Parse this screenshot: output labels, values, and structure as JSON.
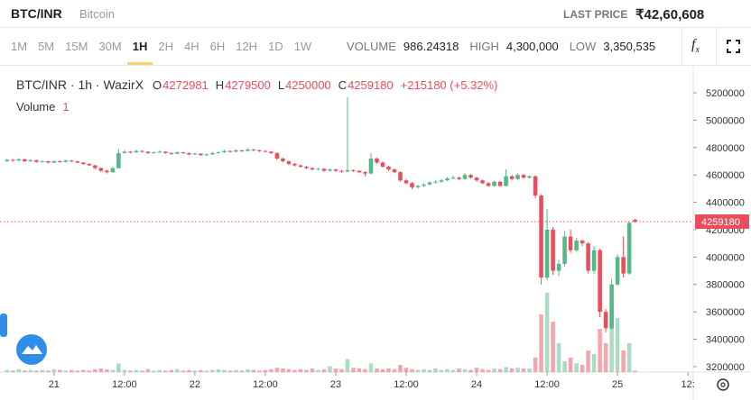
{
  "header": {
    "pair": "BTC/INR",
    "name": "Bitcoin",
    "last_price_label": "LAST PRICE",
    "last_price": "₹42,60,608"
  },
  "toolbar": {
    "intervals": [
      "1M",
      "5M",
      "15M",
      "30M",
      "1H",
      "2H",
      "4H",
      "6H",
      "12H",
      "1D",
      "1W"
    ],
    "active": "1H",
    "stats": [
      {
        "label": "VOLUME",
        "value": "986.24318"
      },
      {
        "label": "HIGH",
        "value": "4,300,000"
      },
      {
        "label": "LOW",
        "value": "3,350,535"
      }
    ]
  },
  "chart_data": {
    "type": "candlestick",
    "title": "BTC/INR · 1h · WazirX",
    "ohlc_labels": [
      "O",
      "H",
      "L",
      "C"
    ],
    "change": "+215180 (+5.32%)",
    "volume_label": "Volume",
    "volume_param": "1",
    "up_color": "#53b987",
    "down_color": "#eb4d5c",
    "ylim": [
      3160000,
      5404000
    ],
    "yticks": [
      3200000,
      3400000,
      3600000,
      3800000,
      4000000,
      4200000,
      4400000,
      4600000,
      4800000,
      5000000,
      5200000
    ],
    "xlim": [
      -1.2,
      116.9
    ],
    "xticks": [
      {
        "value": 8,
        "label": "21"
      },
      {
        "value": 20,
        "label": "12:00"
      },
      {
        "value": 32,
        "label": "22"
      },
      {
        "value": 44,
        "label": "12:00"
      },
      {
        "value": 56,
        "label": "23"
      },
      {
        "value": 68,
        "label": "12:00"
      },
      {
        "value": 80,
        "label": "24"
      },
      {
        "value": 92,
        "label": "12:00"
      },
      {
        "value": 104,
        "label": "25"
      },
      {
        "value": 116,
        "label": "12:"
      }
    ],
    "candles": [
      [
        4700000,
        4720000,
        4695000,
        4710000
      ],
      [
        4710000,
        4718000,
        4698000,
        4705000
      ],
      [
        4705000,
        4722000,
        4700000,
        4715000
      ],
      [
        4715000,
        4718000,
        4695000,
        4700000
      ],
      [
        4700000,
        4715000,
        4696000,
        4708000
      ],
      [
        4708000,
        4710000,
        4690000,
        4695000
      ],
      [
        4695000,
        4706000,
        4690000,
        4700000
      ],
      [
        4700000,
        4704000,
        4684000,
        4690000
      ],
      [
        4690000,
        4708000,
        4686000,
        4700000
      ],
      [
        4700000,
        4705000,
        4690000,
        4695000
      ],
      [
        4695000,
        4712000,
        4690000,
        4705000
      ],
      [
        4705000,
        4710000,
        4695000,
        4700000
      ],
      [
        4700000,
        4703000,
        4685000,
        4690000
      ],
      [
        4690000,
        4695000,
        4675000,
        4680000
      ],
      [
        4680000,
        4686000,
        4665000,
        4670000
      ],
      [
        4670000,
        4675000,
        4640000,
        4650000
      ],
      [
        4650000,
        4655000,
        4620000,
        4630000
      ],
      [
        4630000,
        4640000,
        4610000,
        4620000
      ],
      [
        4620000,
        4660000,
        4615000,
        4650000
      ],
      [
        4650000,
        4790000,
        4645000,
        4760000
      ],
      [
        4760000,
        4780000,
        4755000,
        4770000
      ],
      [
        4770000,
        4775000,
        4758000,
        4765000
      ],
      [
        4765000,
        4785000,
        4760000,
        4775000
      ],
      [
        4775000,
        4780000,
        4764000,
        4770000
      ],
      [
        4770000,
        4773000,
        4752000,
        4760000
      ],
      [
        4760000,
        4772000,
        4756000,
        4765000
      ],
      [
        4765000,
        4778000,
        4760000,
        4770000
      ],
      [
        4770000,
        4774000,
        4754000,
        4760000
      ],
      [
        4760000,
        4764000,
        4748000,
        4755000
      ],
      [
        4755000,
        4772000,
        4750000,
        4765000
      ],
      [
        4765000,
        4770000,
        4754000,
        4760000
      ],
      [
        4760000,
        4764000,
        4742000,
        4750000
      ],
      [
        4750000,
        4762000,
        4746000,
        4755000
      ],
      [
        4755000,
        4758000,
        4738000,
        4745000
      ],
      [
        4745000,
        4756000,
        4740000,
        4750000
      ],
      [
        4750000,
        4768000,
        4746000,
        4760000
      ],
      [
        4760000,
        4772000,
        4755000,
        4765000
      ],
      [
        4765000,
        4784000,
        4760000,
        4775000
      ],
      [
        4775000,
        4780000,
        4764000,
        4770000
      ],
      [
        4770000,
        4790000,
        4766000,
        4780000
      ],
      [
        4780000,
        4784000,
        4768000,
        4775000
      ],
      [
        4775000,
        4795000,
        4770000,
        4785000
      ],
      [
        4785000,
        4790000,
        4774000,
        4780000
      ],
      [
        4780000,
        4784000,
        4768000,
        4775000
      ],
      [
        4775000,
        4780000,
        4764000,
        4770000
      ],
      [
        4770000,
        4774000,
        4752000,
        4760000
      ],
      [
        4760000,
        4765000,
        4710000,
        4720000
      ],
      [
        4720000,
        4728000,
        4692000,
        4700000
      ],
      [
        4700000,
        4706000,
        4672000,
        4680000
      ],
      [
        4680000,
        4688000,
        4662000,
        4670000
      ],
      [
        4670000,
        4676000,
        4652000,
        4660000
      ],
      [
        4660000,
        4668000,
        4642000,
        4650000
      ],
      [
        4650000,
        4656000,
        4632000,
        4640000
      ],
      [
        4640000,
        4652000,
        4635000,
        4645000
      ],
      [
        4645000,
        4650000,
        4622000,
        4630000
      ],
      [
        4630000,
        4648000,
        4625000,
        4640000
      ],
      [
        4640000,
        4645000,
        4622000,
        4630000
      ],
      [
        4630000,
        4636000,
        4615000,
        4625000
      ],
      [
        4625000,
        5170000,
        4620000,
        4635000
      ],
      [
        4635000,
        4640000,
        4622000,
        4630000
      ],
      [
        4630000,
        4635000,
        4612000,
        4620000
      ],
      [
        4620000,
        4628000,
        4590000,
        4610000
      ],
      [
        4610000,
        4760000,
        4605000,
        4720000
      ],
      [
        4720000,
        4728000,
        4680000,
        4690000
      ],
      [
        4690000,
        4698000,
        4652000,
        4660000
      ],
      [
        4660000,
        4668000,
        4630000,
        4640000
      ],
      [
        4640000,
        4648000,
        4612000,
        4620000
      ],
      [
        4620000,
        4628000,
        4550000,
        4560000
      ],
      [
        4560000,
        4570000,
        4530000,
        4540000
      ],
      [
        4540000,
        4548000,
        4495000,
        4510000
      ],
      [
        4510000,
        4528000,
        4500000,
        4520000
      ],
      [
        4520000,
        4540000,
        4512000,
        4530000
      ],
      [
        4530000,
        4555000,
        4525000,
        4545000
      ],
      [
        4545000,
        4560000,
        4538000,
        4550000
      ],
      [
        4550000,
        4570000,
        4544000,
        4560000
      ],
      [
        4560000,
        4585000,
        4555000,
        4575000
      ],
      [
        4575000,
        4595000,
        4570000,
        4580000
      ],
      [
        4580000,
        4588000,
        4562000,
        4570000
      ],
      [
        4570000,
        4615000,
        4565000,
        4600000
      ],
      [
        4600000,
        4608000,
        4572000,
        4580000
      ],
      [
        4580000,
        4586000,
        4552000,
        4560000
      ],
      [
        4560000,
        4566000,
        4532000,
        4540000
      ],
      [
        4540000,
        4548000,
        4512000,
        4520000
      ],
      [
        4520000,
        4560000,
        4515000,
        4550000
      ],
      [
        4550000,
        4556000,
        4512000,
        4520000
      ],
      [
        4520000,
        4640000,
        4515000,
        4590000
      ],
      [
        4590000,
        4600000,
        4562000,
        4570000
      ],
      [
        4570000,
        4612000,
        4565000,
        4600000
      ],
      [
        4600000,
        4606000,
        4572000,
        4580000
      ],
      [
        4580000,
        4598000,
        4574000,
        4590000
      ],
      [
        4590000,
        4596000,
        4430000,
        4450000
      ],
      [
        4450000,
        4460000,
        3800000,
        3850000
      ],
      [
        3850000,
        4350000,
        3830000,
        4200000
      ],
      [
        4200000,
        4220000,
        3870000,
        3900000
      ],
      [
        3900000,
        3980000,
        3860000,
        3950000
      ],
      [
        3950000,
        4190000,
        3930000,
        4150000
      ],
      [
        4150000,
        4200000,
        4030000,
        4050000
      ],
      [
        4050000,
        4140000,
        4040000,
        4120000
      ],
      [
        4120000,
        4130000,
        4080000,
        4100000
      ],
      [
        4100000,
        4110000,
        3880000,
        3900000
      ],
      [
        3900000,
        4080000,
        3880000,
        4050000
      ],
      [
        4050000,
        4060000,
        3560000,
        3600000
      ],
      [
        3600000,
        3620000,
        3450000,
        3480000
      ],
      [
        3480000,
        3840000,
        3470000,
        3800000
      ],
      [
        3800000,
        4020000,
        3790000,
        4000000
      ],
      [
        4000000,
        4150000,
        3850000,
        3880000
      ],
      [
        3880000,
        4260000,
        3870000,
        4250000
      ],
      [
        4272981,
        4279500,
        4250000,
        4259180
      ]
    ],
    "volume": [
      3,
      2,
      4,
      2,
      3,
      2,
      3,
      2,
      4,
      3,
      2,
      3,
      2,
      3,
      2,
      4,
      5,
      4,
      3,
      12,
      3,
      2,
      3,
      2,
      4,
      2,
      3,
      2,
      3,
      4,
      2,
      3,
      2,
      3,
      2,
      3,
      4,
      3,
      2,
      3,
      2,
      4,
      3,
      2,
      3,
      4,
      6,
      5,
      4,
      3,
      4,
      3,
      5,
      3,
      4,
      8,
      5,
      4,
      18,
      6,
      5,
      4,
      12,
      5,
      4,
      5,
      4,
      10,
      6,
      4,
      3,
      4,
      3,
      5,
      3,
      4,
      3,
      5,
      4,
      3,
      6,
      4,
      3,
      5,
      4,
      7,
      5,
      6,
      5,
      5,
      20,
      80,
      110,
      70,
      40,
      15,
      20,
      12,
      10,
      30,
      25,
      60,
      40,
      95,
      75,
      30,
      40,
      2
    ]
  }
}
